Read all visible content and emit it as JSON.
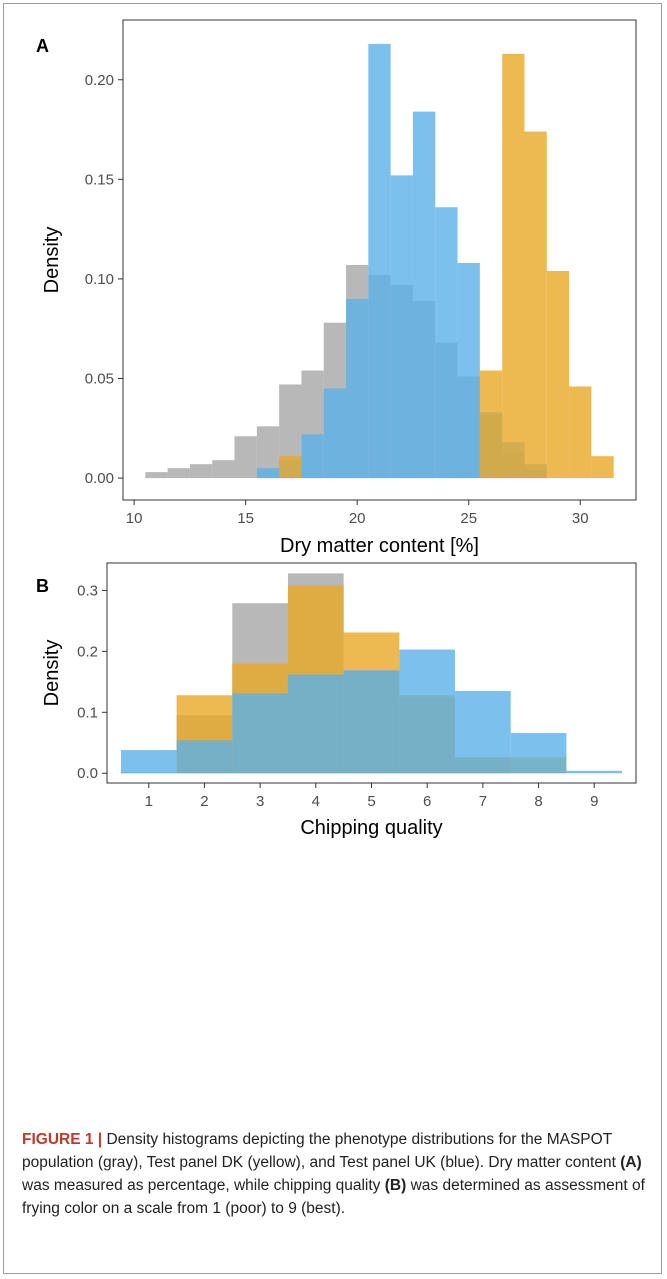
{
  "colors": {
    "gray": "#a6a6a6",
    "yellow": "#e9a825",
    "blue": "#5bb2e8"
  },
  "chart_data": [
    {
      "type": "bar",
      "panel_label": "A",
      "xlabel": "Dry matter content [%]",
      "ylabel": "Density",
      "xlim": [
        9.5,
        32.5
      ],
      "ylim": [
        -0.011,
        0.23
      ],
      "xticks": [
        10,
        15,
        20,
        25,
        30
      ],
      "yticks": [
        0.0,
        0.05,
        0.1,
        0.15,
        0.2
      ],
      "ytick_labels": [
        "0.00",
        "0.05",
        "0.10",
        "0.15",
        "0.20"
      ],
      "bin_width": 1,
      "grid": false,
      "series": [
        {
          "color_key": "gray",
          "bin_starts": [
            10.5,
            11.5,
            12.5,
            13.5,
            14.5,
            15.5,
            16.5,
            17.5,
            18.5,
            19.5,
            20.5,
            21.5,
            22.5,
            23.5,
            24.5,
            25.5,
            26.5,
            27.5
          ],
          "values": [
            0.003,
            0.005,
            0.007,
            0.009,
            0.021,
            0.026,
            0.047,
            0.054,
            0.078,
            0.107,
            0.102,
            0.097,
            0.089,
            0.068,
            0.051,
            0.032,
            0.012,
            0.004
          ]
        },
        {
          "color_key": "blue",
          "bin_starts": [
            15.5,
            16.5,
            17.5,
            18.5,
            19.5,
            20.5,
            21.5,
            22.5,
            23.5,
            24.5,
            25.5,
            26.5,
            27.5
          ],
          "values": [
            0.005,
            0.009,
            0.022,
            0.045,
            0.09,
            0.218,
            0.152,
            0.184,
            0.136,
            0.108,
            0.033,
            0.018,
            0.007
          ]
        },
        {
          "color_key": "yellow",
          "bin_starts": [
            16.5,
            25.5,
            26.5,
            27.5,
            28.5,
            29.5,
            30.5
          ],
          "values": [
            0.011,
            0.054,
            0.213,
            0.174,
            0.104,
            0.046,
            0.011
          ]
        }
      ]
    },
    {
      "type": "bar",
      "panel_label": "B",
      "xlabel": "Chipping quality",
      "ylabel": "Density",
      "xlim": [
        0.25,
        9.75
      ],
      "ylim": [
        -0.016,
        0.345
      ],
      "xticks": [
        1,
        2,
        3,
        4,
        5,
        6,
        7,
        8,
        9
      ],
      "yticks": [
        0.0,
        0.1,
        0.2,
        0.3
      ],
      "ytick_labels": [
        "0.0",
        "0.1",
        "0.2",
        "0.3"
      ],
      "bin_width": 1,
      "grid": false,
      "series": [
        {
          "color_key": "gray",
          "bin_starts": [
            0.5,
            1.5,
            2.5,
            3.5,
            4.5,
            5.5,
            6.5
          ],
          "values": [
            0.002,
            0.095,
            0.279,
            0.328,
            0.168,
            0.123,
            0.026
          ]
        },
        {
          "color_key": "yellow",
          "bin_starts": [
            1.5,
            2.5,
            3.5,
            4.5,
            5.5,
            6.5,
            7.5
          ],
          "values": [
            0.128,
            0.18,
            0.308,
            0.231,
            0.128,
            0.026,
            0.026
          ]
        },
        {
          "color_key": "blue",
          "bin_starts": [
            0.5,
            1.5,
            2.5,
            3.5,
            4.5,
            5.5,
            6.5,
            7.5,
            8.5
          ],
          "values": [
            0.038,
            0.054,
            0.131,
            0.162,
            0.169,
            0.203,
            0.135,
            0.066,
            0.004
          ]
        }
      ]
    }
  ],
  "caption": {
    "fig_label": "FIGURE 1 |",
    "part1": " Density histograms depicting the phenotype distributions for the MASPOT population (gray), Test panel DK (yellow), and Test panel UK (blue). Dry matter content ",
    "ref_a": "(A)",
    "part2": " was measured as percentage, while chipping quality ",
    "ref_b": "(B)",
    "part3": " was determined as assessment of frying color on a scale from 1 (poor) to 9 (best)."
  }
}
